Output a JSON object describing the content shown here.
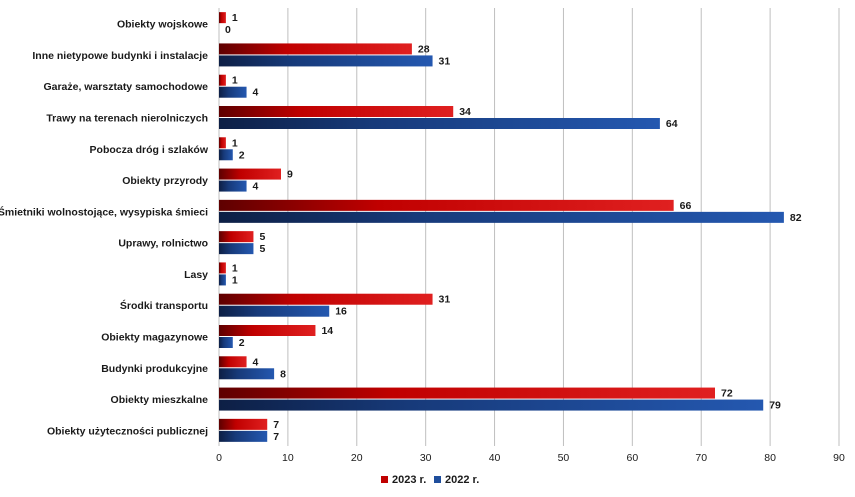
{
  "chart_data": {
    "type": "bar",
    "orientation": "horizontal",
    "categories": [
      "Obiekty wojskowe",
      "Inne nietypowe budynki i instalacje",
      "Garaże, warsztaty samochodowe",
      "Trawy na terenach nierolniczych",
      "Pobocza dróg i szlaków",
      "Obiekty przyrody",
      "Śmietniki wolnostojące, wysypiska śmieci",
      "Uprawy, rolnictwo",
      "Lasy",
      "Środki transportu",
      "Obiekty magazynowe",
      "Budynki produkcyjne",
      "Obiekty mieszkalne",
      "Obiekty użyteczności publicznej"
    ],
    "series": [
      {
        "name": "2023 r.",
        "color": "#c00000",
        "values": [
          1,
          28,
          1,
          34,
          1,
          9,
          66,
          5,
          1,
          31,
          14,
          4,
          72,
          7
        ]
      },
      {
        "name": "2022 r.",
        "color": "#1f4e9c",
        "values": [
          0,
          31,
          4,
          64,
          2,
          4,
          82,
          5,
          1,
          16,
          2,
          8,
          79,
          7
        ]
      }
    ],
    "xlim": [
      0,
      90
    ],
    "xticks": [
      "0",
      "10",
      "20",
      "30",
      "40",
      "50",
      "60",
      "70",
      "80",
      "90"
    ],
    "grid": "vertical",
    "legend": "bottom"
  }
}
